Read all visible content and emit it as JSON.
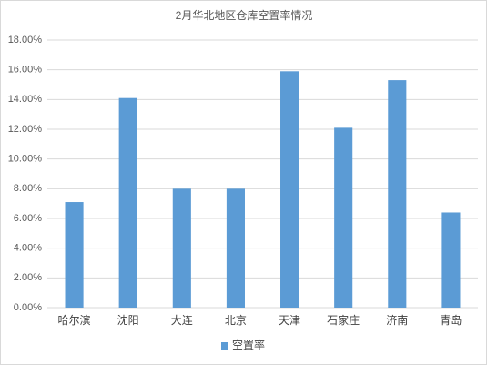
{
  "chart_data": {
    "type": "bar",
    "title": "2月华北地区仓库空置率情况",
    "categories": [
      "哈尔滨",
      "沈阳",
      "大连",
      "北京",
      "天津",
      "石家庄",
      "济南",
      "青岛"
    ],
    "series": [
      {
        "name": "空置率",
        "color": "#5b9bd5",
        "values": [
          7.1,
          14.1,
          8.0,
          8.0,
          15.9,
          12.1,
          15.3,
          6.4
        ]
      }
    ],
    "ylim": [
      0,
      18
    ],
    "yticks": [
      {
        "value": 0,
        "label": "0.00%"
      },
      {
        "value": 2,
        "label": "2.00%"
      },
      {
        "value": 4,
        "label": "4.00%"
      },
      {
        "value": 6,
        "label": "6.00%"
      },
      {
        "value": 8,
        "label": "8.00%"
      },
      {
        "value": 10,
        "label": "10.00%"
      },
      {
        "value": 12,
        "label": "12.00%"
      },
      {
        "value": 14,
        "label": "14.00%"
      },
      {
        "value": 16,
        "label": "16.00%"
      },
      {
        "value": 18,
        "label": "18.00%"
      }
    ],
    "grid": true,
    "legend": "bottom"
  }
}
